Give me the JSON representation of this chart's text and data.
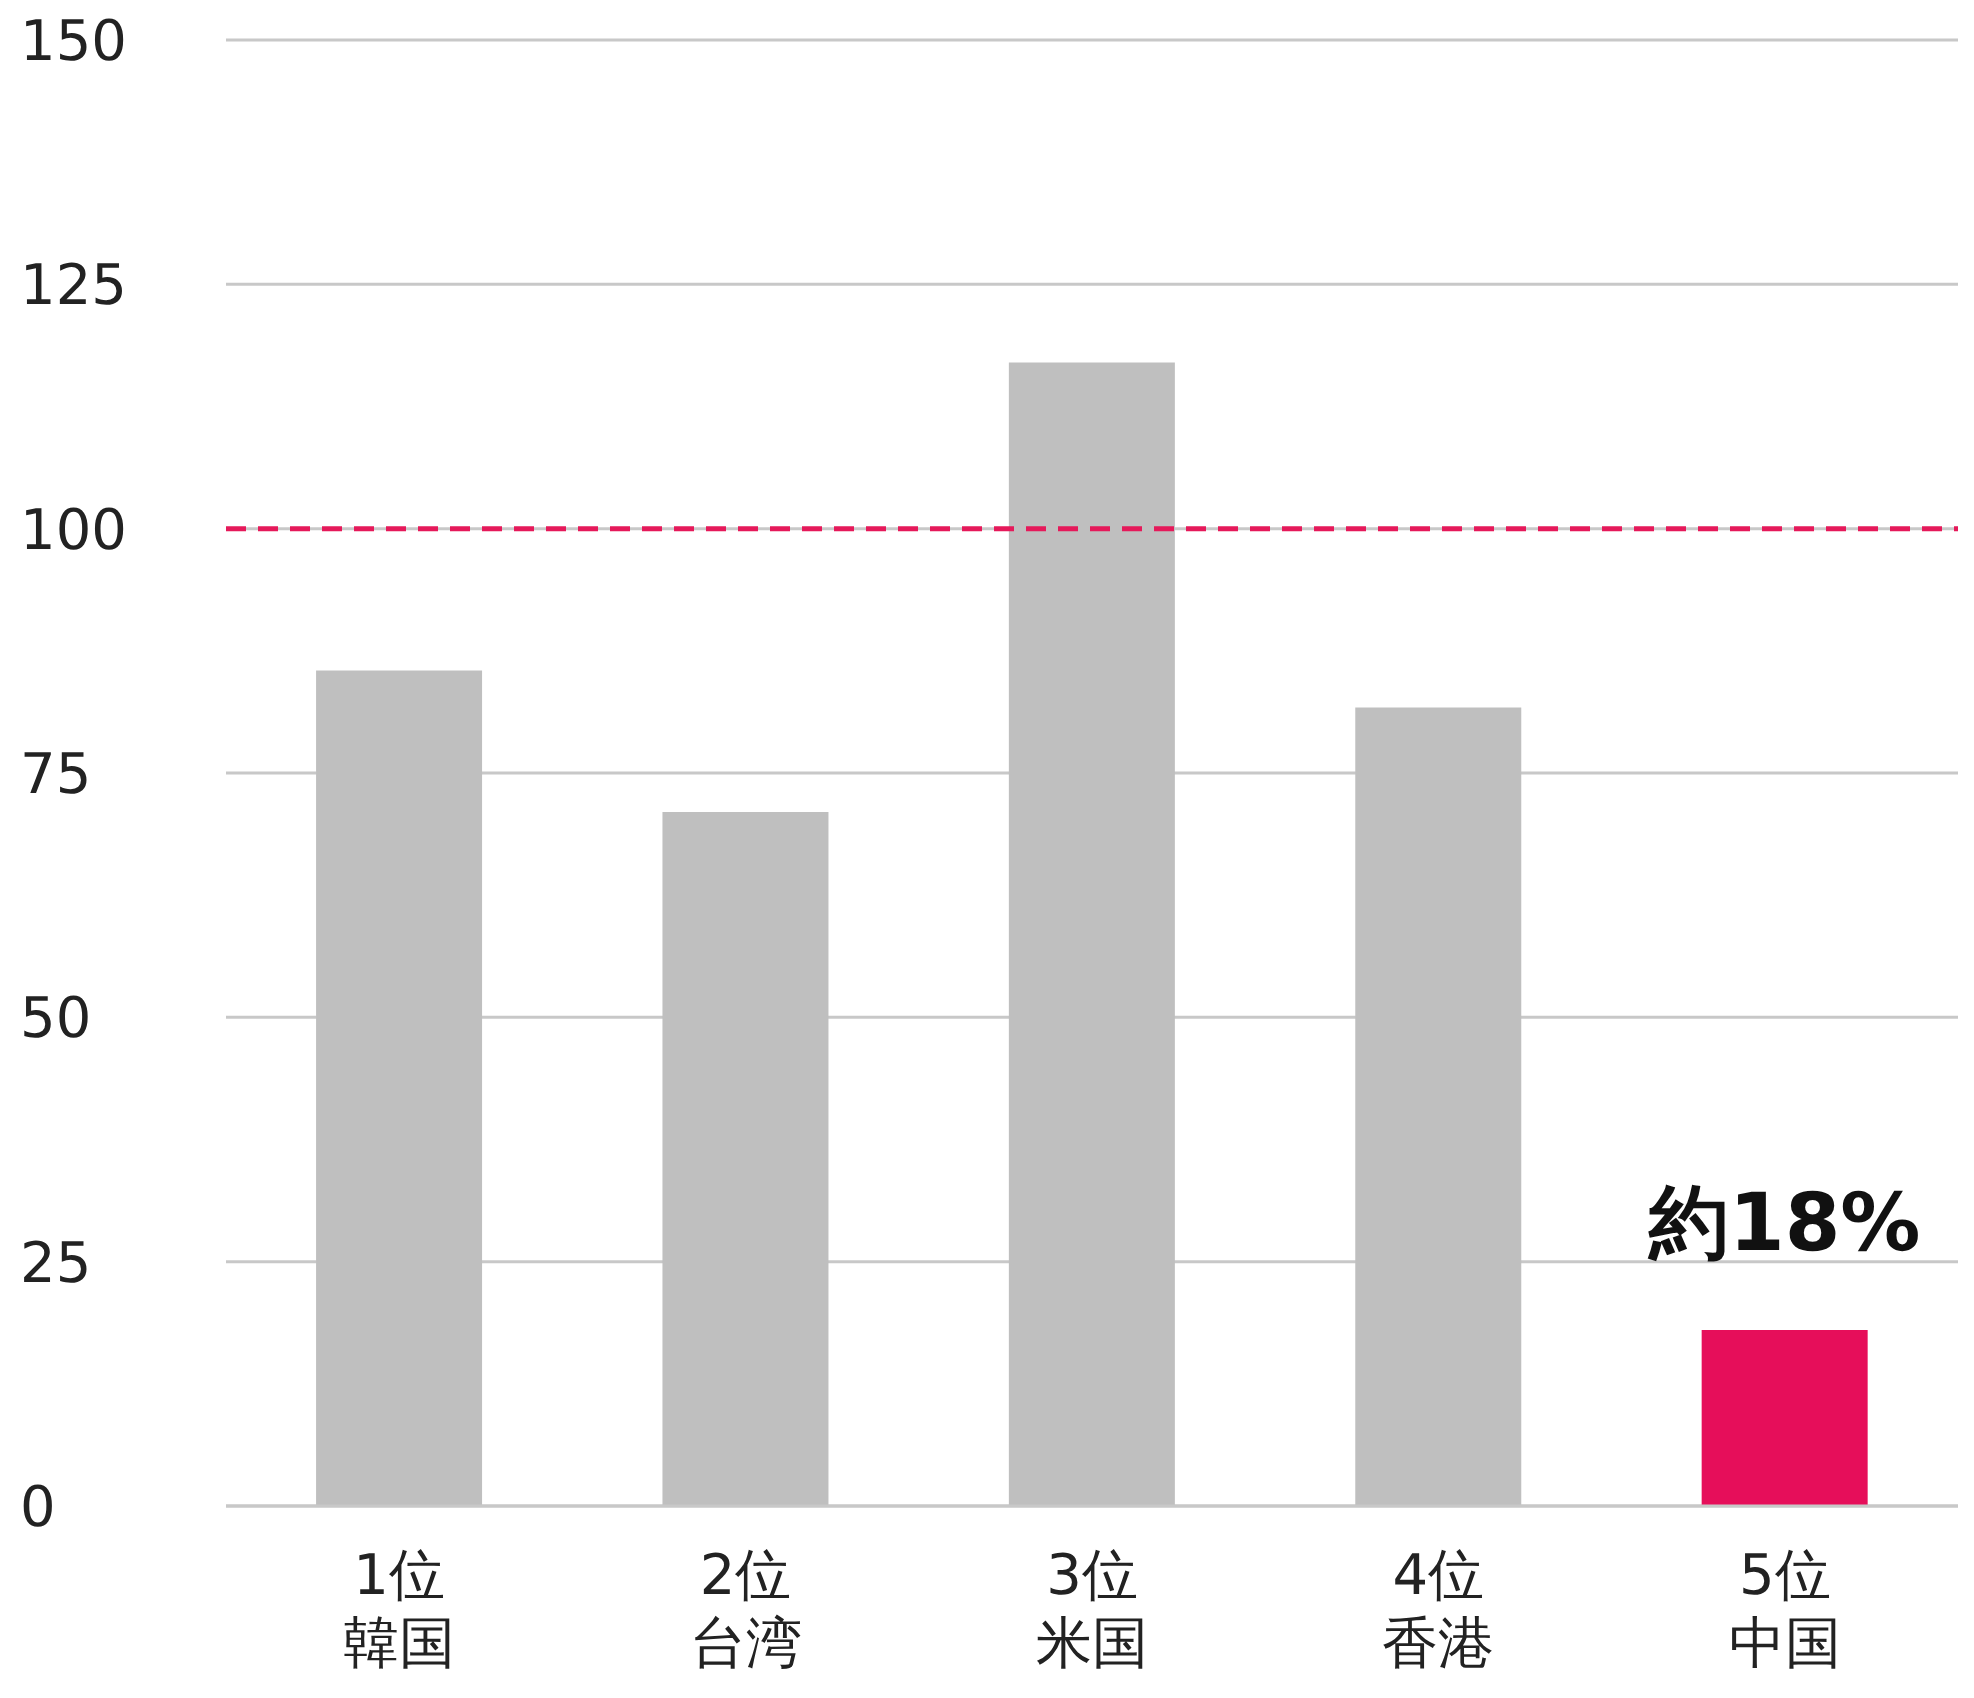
{
  "chart_data": {
    "type": "bar",
    "categories": [
      "1位韓国",
      "2位台湾",
      "3位米国",
      "4位香港",
      "5位中国"
    ],
    "values": [
      85.5,
      71,
      117,
      81.7,
      18
    ],
    "colors": [
      "#bfbfbf",
      "#bfbfbf",
      "#bfbfbf",
      "#bfbfbf",
      "#e60e5a"
    ],
    "ylim": [
      0,
      150
    ],
    "yticks": [
      0,
      25,
      50,
      75,
      100,
      125,
      150
    ],
    "grid": "y",
    "ref_lines": [
      {
        "axis": "y",
        "value": 100,
        "color": "#e5195a",
        "line_style": "dashed"
      }
    ],
    "annotations": [
      {
        "text": "約18%",
        "x": "5位中国",
        "y": 18
      }
    ]
  }
}
